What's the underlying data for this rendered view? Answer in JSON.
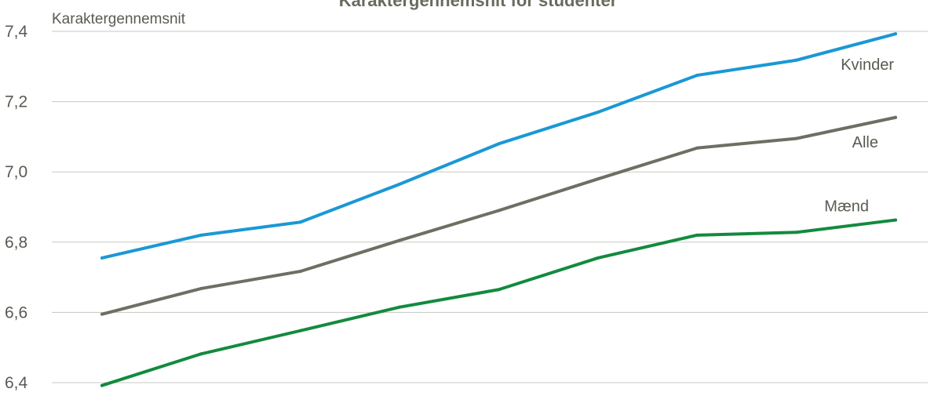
{
  "chart_data": {
    "type": "line",
    "title": "Karaktergennemsnit for studenter",
    "ylabel": "Karaktergennemsnit",
    "xlabel": "",
    "ylim": [
      6.4,
      7.4
    ],
    "yticks": [
      "6,4",
      "6,6",
      "6,8",
      "7,0",
      "7,2",
      "7,4"
    ],
    "ytick_values": [
      6.4,
      6.6,
      6.8,
      7.0,
      7.2,
      7.4
    ],
    "grid": true,
    "x": [
      1,
      2,
      3,
      4,
      5,
      6,
      7,
      8,
      9
    ],
    "series": [
      {
        "name": "Kvinder",
        "color": "#1a98d5",
        "values": [
          6.755,
          6.82,
          6.857,
          6.965,
          7.08,
          7.17,
          7.275,
          7.318,
          7.393
        ]
      },
      {
        "name": "Alle",
        "color": "#6e6e62",
        "values": [
          6.595,
          6.668,
          6.717,
          6.805,
          6.89,
          6.98,
          7.068,
          7.095,
          7.155
        ]
      },
      {
        "name": "Mænd",
        "color": "#138a3e",
        "values": [
          6.392,
          6.482,
          6.548,
          6.615,
          6.665,
          6.755,
          6.82,
          6.828,
          6.863
        ]
      }
    ]
  }
}
